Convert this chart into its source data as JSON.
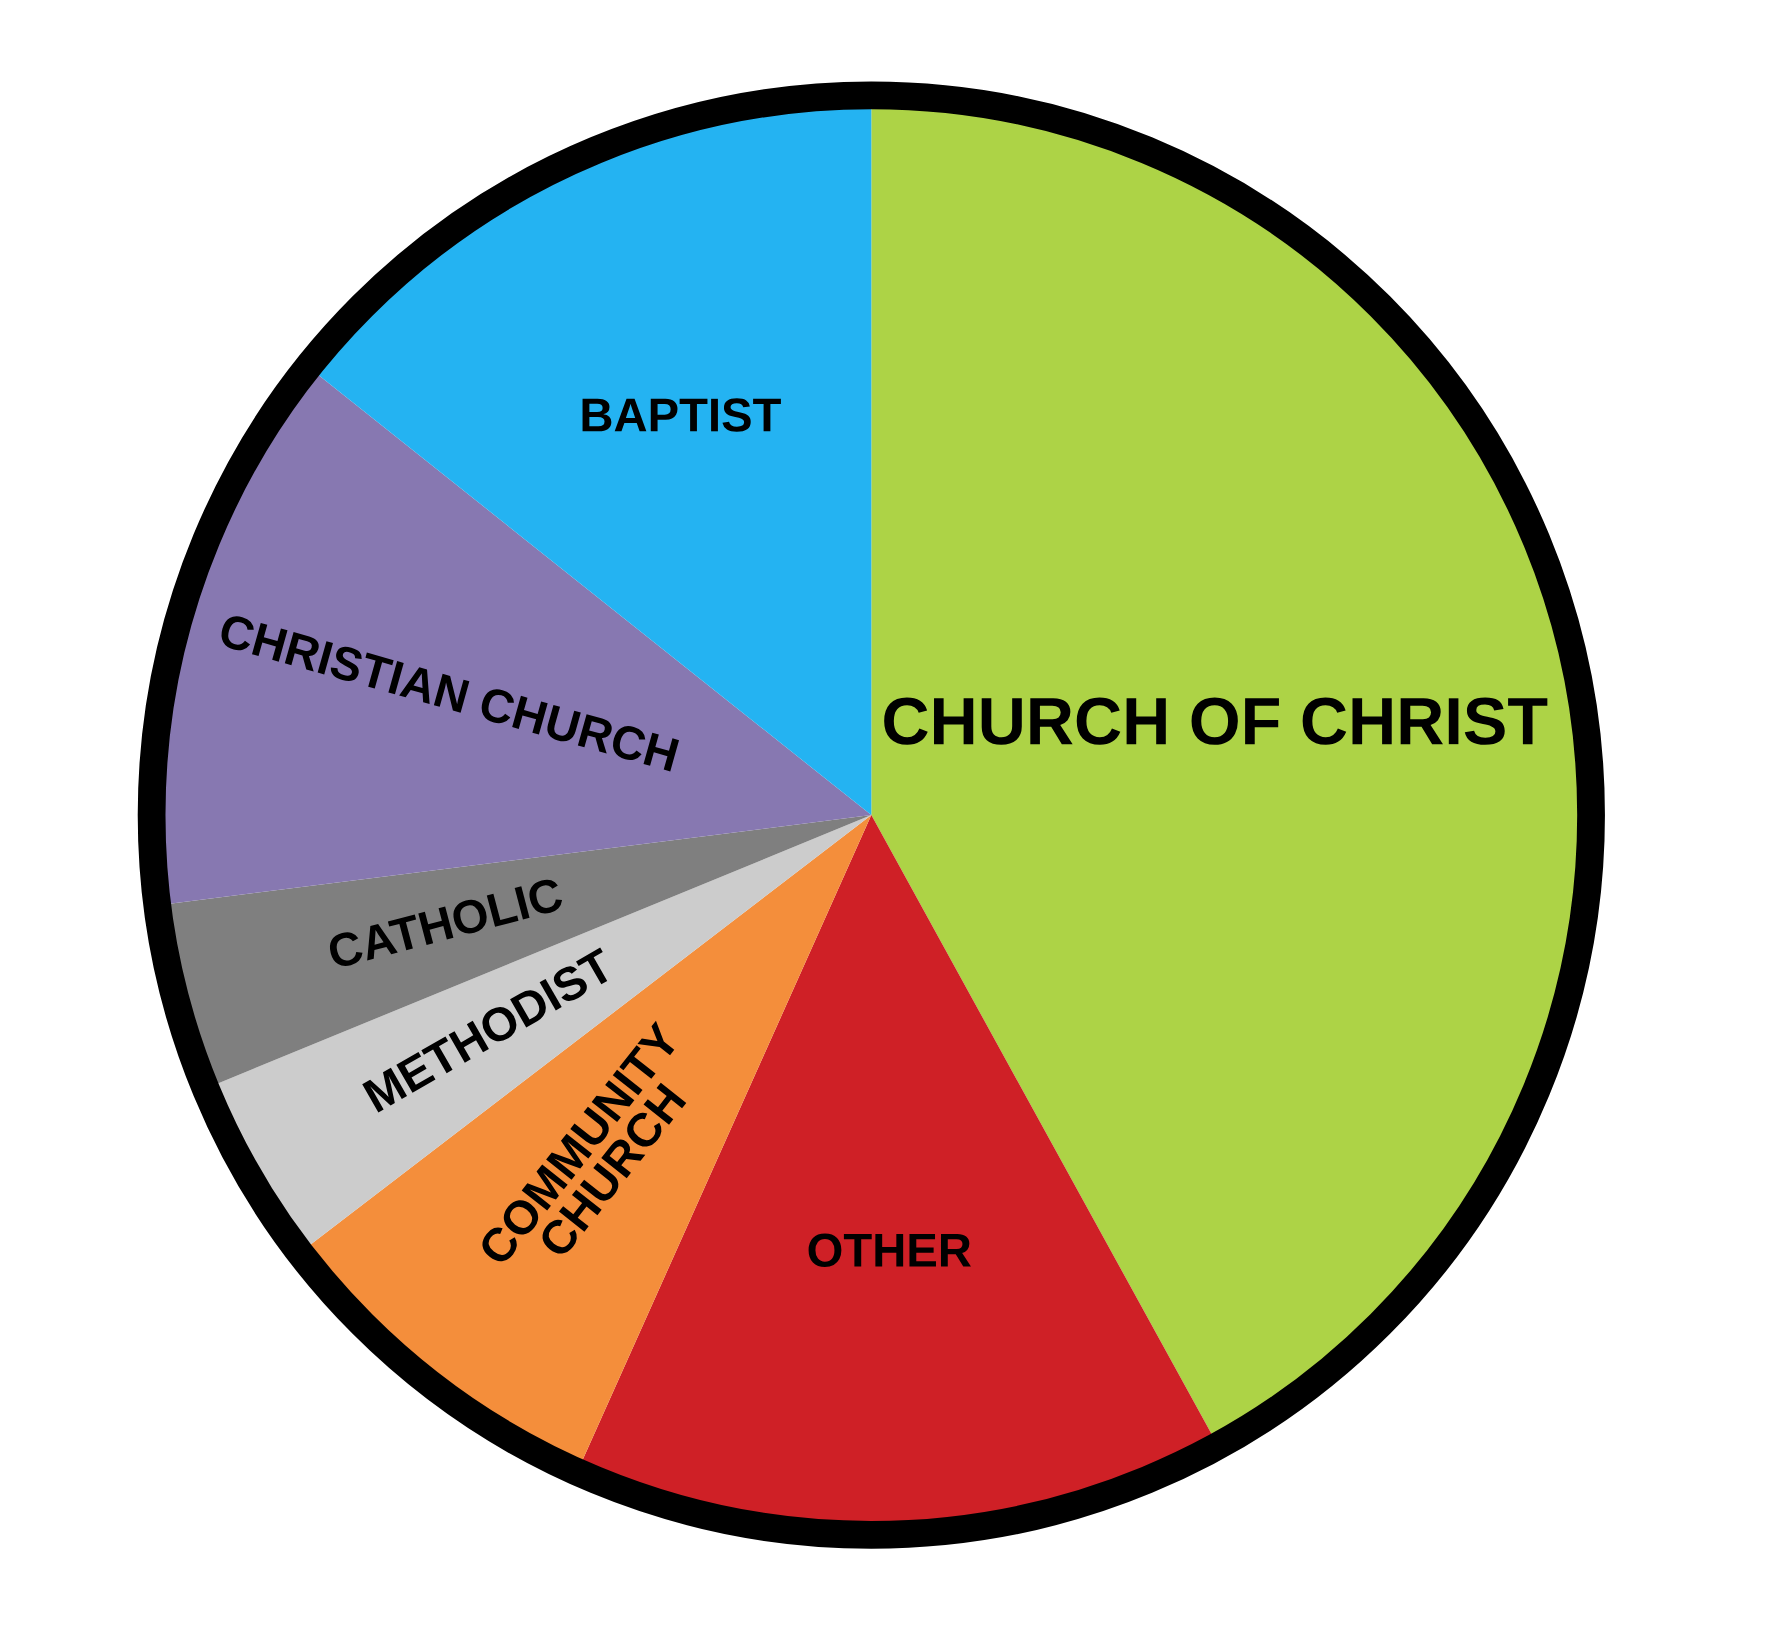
{
  "chart_data": {
    "type": "pie",
    "categories": [
      "CHURCH OF CHRIST",
      "OTHER",
      "COMMUNITY\nCHURCH",
      "METHODIST",
      "CATHOLIC",
      "CHRISTIAN CHURCH",
      "BAPTIST"
    ],
    "values": [
      42,
      14.7,
      7.9,
      4.2,
      4.2,
      12.7,
      14.3
    ],
    "colors": [
      "#add346",
      "#cf2026",
      "#f48e3b",
      "#cccccc",
      "#7f7f7f",
      "#8778b1",
      "#24b3f2"
    ]
  }
}
